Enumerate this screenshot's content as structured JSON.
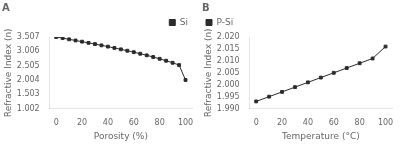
{
  "chart_data": [
    {
      "type": "line",
      "title": "A",
      "xlabel": "Porosity (%)",
      "ylabel": "Refractive Index (n)",
      "x": [
        0,
        5,
        10,
        15,
        20,
        25,
        30,
        35,
        40,
        45,
        50,
        55,
        60,
        65,
        70,
        75,
        80,
        85,
        90,
        95,
        100
      ],
      "series": [
        {
          "name": "Si",
          "color": "#2b2b2b",
          "marker": "square",
          "line_style": "solid",
          "values": [
            3.507,
            3.467,
            3.426,
            3.385,
            3.344,
            3.302,
            3.259,
            3.215,
            3.17,
            3.124,
            3.076,
            3.027,
            2.976,
            2.922,
            2.866,
            2.807,
            2.744,
            2.677,
            2.605,
            2.526,
            2.002
          ]
        }
      ],
      "xlim": [
        -5,
        105
      ],
      "ylim": [
        1.002,
        3.507
      ],
      "xticks": [
        0,
        20,
        40,
        60,
        80,
        100
      ],
      "yticks": [
        1.002,
        1.503,
        2.004,
        2.505,
        3.006,
        3.507
      ],
      "grid": false,
      "legend": "upper right"
    },
    {
      "type": "line",
      "title": "B",
      "xlabel": "Temperature (°C)",
      "ylabel": "Refractive Index (n)",
      "x": [
        0,
        10,
        20,
        30,
        40,
        50,
        60,
        70,
        80,
        90,
        100
      ],
      "series": [
        {
          "name": "P-Si",
          "color": "#2b2b2b",
          "marker": "square",
          "line_style": "solid",
          "values": [
            1.993,
            1.995,
            1.997,
            1.999,
            2.001,
            2.003,
            2.005,
            2.007,
            2.009,
            2.011,
            2.016
          ]
        }
      ],
      "xlim": [
        -5,
        105
      ],
      "ylim": [
        1.99,
        2.02
      ],
      "xticks": [
        0,
        20,
        40,
        60,
        80,
        100
      ],
      "yticks": [
        {
          "value": 1.99,
          "label": "1.990"
        },
        1.995,
        {
          "value": 2.0,
          "label": "2.000"
        },
        2.005,
        {
          "value": 2.01,
          "label": "2.010"
        },
        2.015,
        {
          "value": 2.02,
          "label": "2.020"
        }
      ],
      "grid": false,
      "legend": "upper left"
    }
  ]
}
